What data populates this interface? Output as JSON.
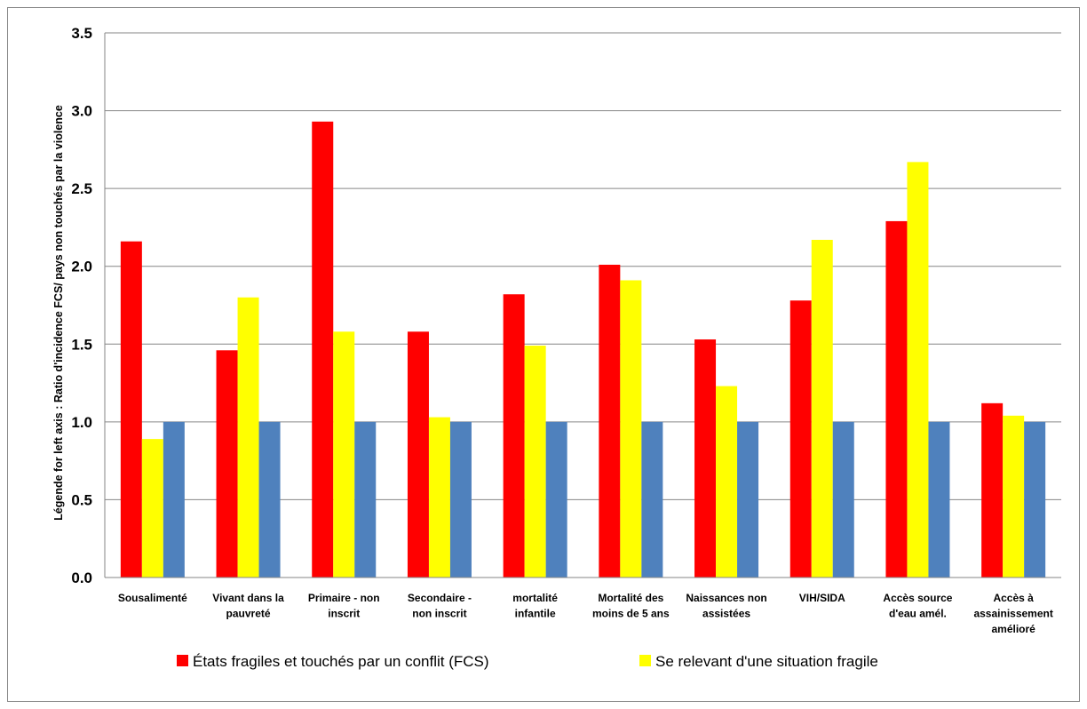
{
  "chart_data": {
    "type": "bar",
    "title": "",
    "xlabel": "",
    "ylabel": "Légende for left axis : Ratio d'incidence FCS/ pays non touchés par la violence",
    "ylim": [
      0,
      3.5
    ],
    "yticks": [
      "0.0",
      "0.5",
      "1.0",
      "1.5",
      "2.0",
      "2.5",
      "3.0",
      "3.5"
    ],
    "grid": true,
    "legend_position": "bottom",
    "categories": [
      [
        "Sousalimenté"
      ],
      [
        "Vivant dans la",
        "pauvreté"
      ],
      [
        "Primaire - non",
        "inscrit"
      ],
      [
        "Secondaire -",
        "non inscrit"
      ],
      [
        "mortalité",
        "infantile"
      ],
      [
        "Mortalité des",
        "moins de 5 ans"
      ],
      [
        "Naissances non",
        "assistées"
      ],
      [
        "VIH/SIDA"
      ],
      [
        "Accès source",
        "d'eau amél."
      ],
      [
        "Accès à",
        "assainissement",
        "amélioré"
      ]
    ],
    "series": [
      {
        "name": "États fragiles et touchés par un conflit (FCS)",
        "color": "#ff0000",
        "values": [
          2.16,
          1.46,
          2.93,
          1.58,
          1.82,
          2.01,
          1.53,
          1.78,
          2.29,
          1.12
        ]
      },
      {
        "name": "Se relevant d'une situation fragile",
        "color": "#ffff00",
        "values": [
          0.89,
          1.8,
          1.58,
          1.03,
          1.49,
          1.91,
          1.23,
          2.17,
          2.67,
          1.04
        ]
      },
      {
        "name": "",
        "color": "#4f81bd",
        "values": [
          1.0,
          1.0,
          1.0,
          1.0,
          1.0,
          1.0,
          1.0,
          1.0,
          1.0,
          1.0
        ]
      }
    ]
  }
}
